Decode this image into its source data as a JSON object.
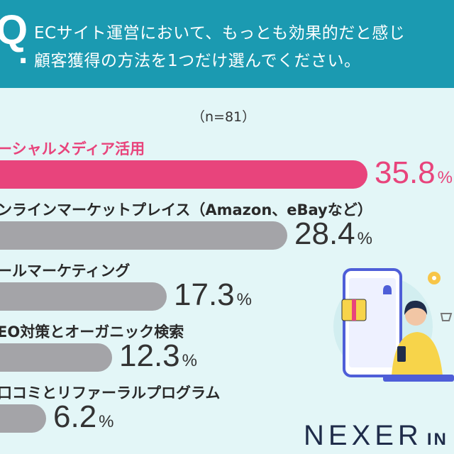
{
  "question": {
    "mark": "Q",
    "dot": ".",
    "line1": "ECサイト運営において、もっとも効果的だと感じ",
    "line2": "顧客獲得の方法を1つだけ選んでください。"
  },
  "sample_size": "（n=81）",
  "chart_data": {
    "type": "bar",
    "orientation": "horizontal",
    "title": "ECサイト運営において、もっとも効果的だと感じ顧客獲得の方法を1つだけ選んでください。",
    "categories": [
      "ーシャルメディア活用",
      "ンラインマーケットプレイス（Amazon、eBayなど）",
      "ールマーケティング",
      "EO対策とオーガニック検索",
      "口コミとリファーラルプログラム"
    ],
    "values": [
      35.8,
      28.4,
      17.3,
      12.3,
      6.2
    ],
    "value_labels": [
      "35.8",
      "28.4",
      "17.3",
      "12.3",
      "6.2"
    ],
    "unit": "%",
    "xlim": [
      0,
      35.8
    ],
    "highlight_index": 0,
    "colors": {
      "highlight": "#e8447c",
      "default": "#a4a4a8"
    },
    "grid": false,
    "legend": "none"
  },
  "brand": {
    "name": "NEXER",
    "suffix": "IN"
  },
  "colors": {
    "header": "#1b9ab1",
    "background": "#e3f6f7",
    "accent": "#e8447c"
  }
}
